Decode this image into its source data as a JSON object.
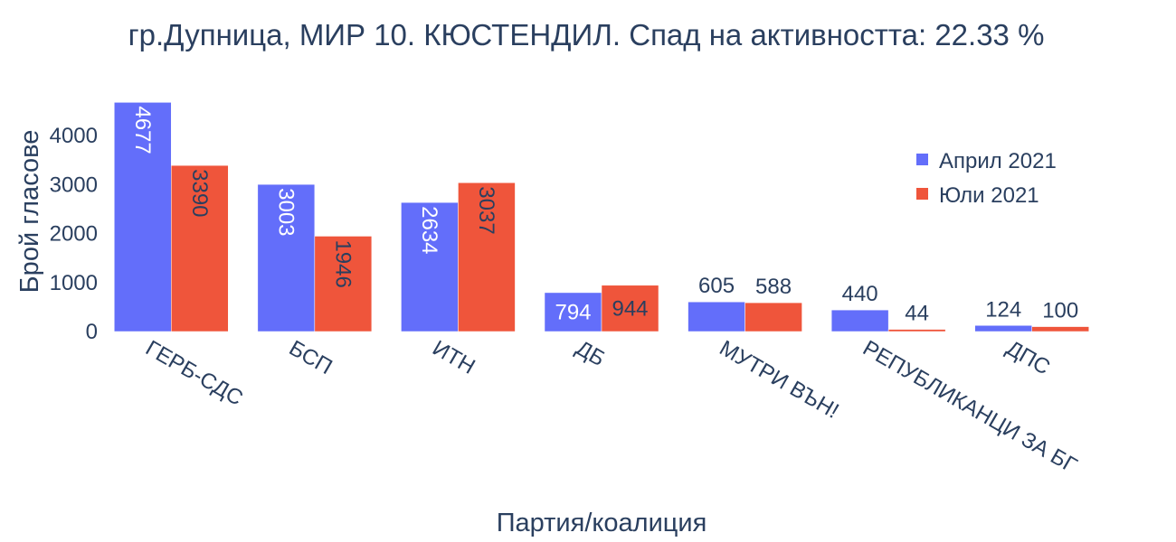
{
  "chart_data": {
    "type": "bar",
    "title": "гр.Дупница, МИР 10. КЮСТЕНДИЛ. Спад на активността: 22.33 %",
    "xlabel": "Партия/коалиция",
    "ylabel": "Брой гласове",
    "categories": [
      "ГЕРБ-СДС",
      "БСП",
      "ИТН",
      "ДБ",
      "МУТРИ ВЪН!",
      "РЕПУБЛИКАНЦИ ЗА БГ",
      "ДПС"
    ],
    "series": [
      {
        "name": "Април 2021",
        "color": "#636efa",
        "values": [
          4677,
          3003,
          2634,
          794,
          605,
          440,
          124
        ]
      },
      {
        "name": "Юли 2021",
        "color": "#ef553b",
        "values": [
          3390,
          1946,
          3037,
          944,
          588,
          44,
          100
        ]
      }
    ],
    "yticks": [
      0,
      1000,
      2000,
      3000,
      4000
    ],
    "ylim": [
      0,
      4923
    ],
    "grid": false,
    "legend_position": "top-right"
  }
}
